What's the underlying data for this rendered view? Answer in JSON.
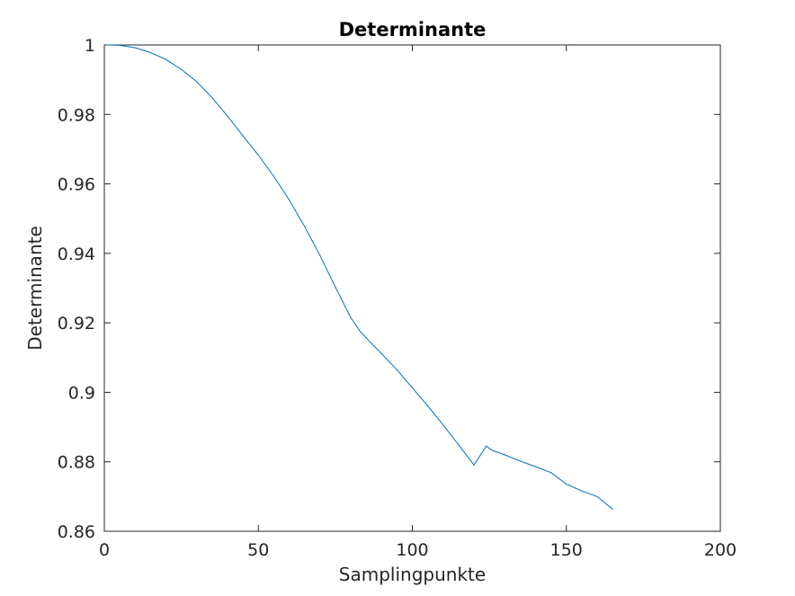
{
  "chart_data": {
    "type": "line",
    "title": "Determinante",
    "xlabel": "Samplingpunkte",
    "ylabel": "Determinante",
    "xlim": [
      0,
      200
    ],
    "ylim": [
      0.86,
      1
    ],
    "xticks": [
      0,
      50,
      100,
      150,
      200
    ],
    "xtick_labels": [
      "0",
      "50",
      "100",
      "150",
      "200"
    ],
    "yticks": [
      0.86,
      0.88,
      0.9,
      0.92,
      0.94,
      0.96,
      0.98,
      1
    ],
    "ytick_labels": [
      "0.86",
      "0.88",
      "0.9",
      "0.92",
      "0.94",
      "0.96",
      "0.98",
      "1"
    ],
    "grid": false,
    "line_color": "#0072bd",
    "axis_color": "#262626",
    "series": [
      {
        "x": [
          1,
          5,
          10,
          15,
          20,
          25,
          30,
          35,
          40,
          45,
          50,
          55,
          60,
          65,
          70,
          75,
          80,
          83,
          85,
          90,
          95,
          100,
          105,
          110,
          115,
          120,
          124,
          126,
          130,
          135,
          140,
          145,
          150,
          155,
          160,
          165
        ],
        "values": [
          1.0,
          0.9999,
          0.9992,
          0.9978,
          0.9958,
          0.993,
          0.9894,
          0.9848,
          0.9795,
          0.9738,
          0.9683,
          0.9622,
          0.9554,
          0.9478,
          0.9394,
          0.9303,
          0.9215,
          0.9176,
          0.9157,
          0.9111,
          0.9065,
          0.9013,
          0.8961,
          0.8906,
          0.8849,
          0.8791,
          0.8845,
          0.8833,
          0.882,
          0.8802,
          0.8786,
          0.8769,
          0.8736,
          0.8716,
          0.87,
          0.8664
        ]
      }
    ]
  }
}
